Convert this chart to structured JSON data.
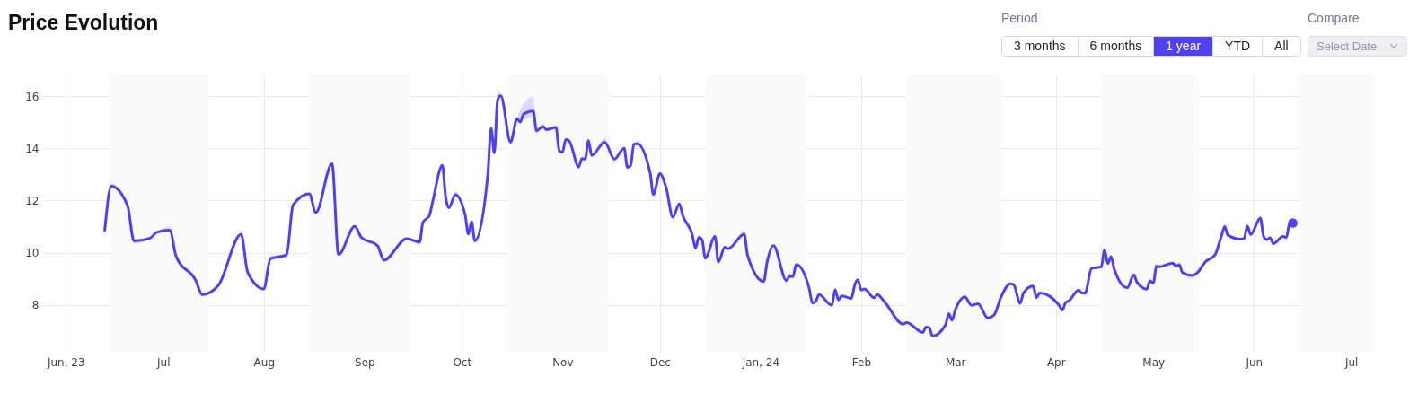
{
  "chart_data": {
    "type": "line",
    "title": "Price Evolution",
    "annotations": [
      "Period",
      "3 months",
      "6 months",
      "1 year",
      "YTD",
      "All",
      "Compare",
      "Select Date"
    ],
    "x": [
      "2023-06-13",
      "2023-06-15",
      "2023-06-20",
      "2023-06-22",
      "2023-06-27",
      "2023-06-29",
      "2023-07-03",
      "2023-07-05",
      "2023-07-11",
      "2023-07-13",
      "2023-07-18",
      "2023-07-25",
      "2023-07-27",
      "2023-08-01",
      "2023-08-03",
      "2023-08-08",
      "2023-08-10",
      "2023-08-15",
      "2023-08-17",
      "2023-08-22",
      "2023-08-24",
      "2023-08-29",
      "2023-08-31",
      "2023-09-05",
      "2023-09-07",
      "2023-09-14",
      "2023-09-18",
      "2023-09-19",
      "2023-09-21",
      "2023-09-22",
      "2023-09-25",
      "2023-09-26",
      "2023-09-27",
      "2023-09-29",
      "2023-10-02",
      "2023-10-03",
      "2023-10-04",
      "2023-10-05",
      "2023-10-09",
      "2023-10-10",
      "2023-10-11",
      "2023-10-12",
      "2023-10-13",
      "2023-10-16",
      "2023-10-18",
      "2023-10-19",
      "2023-10-20",
      "2023-10-23",
      "2023-10-24",
      "2023-10-26",
      "2023-10-27",
      "2023-10-30",
      "2023-10-31",
      "2023-11-01",
      "2023-11-02",
      "2023-11-03",
      "2023-11-06",
      "2023-11-07",
      "2023-11-08",
      "2023-11-09",
      "2023-11-10",
      "2023-11-14",
      "2023-11-17",
      "2023-11-20",
      "2023-11-21",
      "2023-11-22",
      "2023-11-23",
      "2023-11-24",
      "2023-11-28",
      "2023-11-29",
      "2023-12-01",
      "2023-12-03",
      "2023-12-05",
      "2023-12-07",
      "2023-12-08",
      "2023-12-11",
      "2023-12-12",
      "2023-12-13",
      "2023-12-14",
      "2023-12-15",
      "2023-12-18",
      "2023-12-19",
      "2023-12-21",
      "2023-12-22",
      "2023-12-27",
      "2023-12-28",
      "2024-01-02",
      "2024-01-03",
      "2024-01-05",
      "2024-01-09",
      "2024-01-10",
      "2024-01-11",
      "2024-01-12",
      "2024-01-16",
      "2024-01-17",
      "2024-01-18",
      "2024-01-19",
      "2024-01-23",
      "2024-01-24",
      "2024-01-25",
      "2024-01-26",
      "2024-01-29",
      "2024-01-30",
      "2024-01-31",
      "2024-02-01",
      "2024-02-02",
      "2024-02-05",
      "2024-02-06",
      "2024-02-08",
      "2024-02-14",
      "2024-02-15",
      "2024-02-20",
      "2024-02-21",
      "2024-02-22",
      "2024-02-23",
      "2024-02-27",
      "2024-02-28",
      "2024-02-29",
      "2024-03-01",
      "2024-03-04",
      "2024-03-06",
      "2024-03-08",
      "2024-03-11",
      "2024-03-13",
      "2024-03-15",
      "2024-03-18",
      "2024-03-19",
      "2024-03-21",
      "2024-03-22",
      "2024-03-25",
      "2024-03-26",
      "2024-03-27",
      "2024-04-02",
      "2024-04-03",
      "2024-04-04",
      "2024-04-05",
      "2024-04-08",
      "2024-04-09",
      "2024-04-10",
      "2024-04-12",
      "2024-04-15",
      "2024-04-16",
      "2024-04-17",
      "2024-04-18",
      "2024-04-19",
      "2024-04-23",
      "2024-04-25",
      "2024-04-26",
      "2024-04-29",
      "2024-04-30",
      "2024-05-01",
      "2024-05-02",
      "2024-05-03",
      "2024-05-07",
      "2024-05-08",
      "2024-05-09",
      "2024-05-10",
      "2024-05-13",
      "2024-05-15",
      "2024-05-17",
      "2024-05-20",
      "2024-05-22",
      "2024-05-23",
      "2024-05-24",
      "2024-05-28",
      "2024-05-29",
      "2024-05-30",
      "2024-05-31",
      "2024-06-03",
      "2024-06-04",
      "2024-06-05",
      "2024-06-06",
      "2024-06-07",
      "2024-06-10",
      "2024-06-11",
      "2024-06-12",
      "2024-06-13"
    ],
    "series": [
      {
        "color": "#4f40f0",
        "values": [
          10.86,
          12.55,
          11.81,
          10.45,
          10.56,
          10.78,
          10.86,
          9.85,
          8.94,
          8.39,
          8.75,
          10.71,
          9.26,
          8.61,
          9.77,
          9.91,
          11.83,
          12.26,
          11.54,
          13.41,
          9.93,
          11.01,
          10.59,
          10.27,
          9.71,
          10.54,
          10.41,
          11.16,
          11.43,
          11.95,
          13.35,
          12.14,
          11.72,
          12.22,
          11.45,
          10.71,
          11.19,
          10.45,
          13.0,
          14.78,
          13.83,
          15.85,
          16.02,
          14.24,
          15.13,
          15.01,
          15.31,
          15.43,
          14.68,
          14.84,
          14.72,
          14.8,
          13.92,
          13.85,
          14.34,
          14.3,
          13.29,
          13.61,
          13.59,
          14.3,
          13.73,
          14.24,
          13.59,
          14.0,
          13.27,
          13.35,
          14.16,
          14.18,
          13.06,
          12.23,
          13.03,
          12.46,
          11.36,
          11.87,
          11.45,
          10.68,
          10.17,
          10.59,
          10.5,
          9.79,
          10.62,
          9.64,
          10.21,
          10.15,
          10.71,
          9.91,
          8.9,
          9.61,
          10.27,
          8.93,
          9.1,
          9.08,
          9.55,
          8.63,
          8.07,
          8.13,
          8.39,
          7.98,
          8.58,
          8.19,
          8.34,
          8.25,
          8.75,
          8.96,
          8.57,
          8.61,
          8.27,
          8.39,
          8.15,
          7.26,
          7.32,
          6.94,
          7.15,
          7.12,
          6.8,
          7.23,
          7.66,
          7.41,
          7.8,
          8.3,
          7.98,
          8.04,
          7.5,
          7.62,
          8.27,
          8.81,
          8.77,
          8.06,
          8.45,
          8.72,
          8.27,
          8.45,
          7.98,
          7.8,
          8.09,
          8.15,
          8.57,
          8.45,
          8.45,
          9.4,
          9.46,
          10.11,
          9.58,
          9.85,
          9.36,
          8.66,
          9.15,
          8.86,
          8.6,
          8.92,
          8.83,
          9.49,
          9.46,
          9.6,
          9.48,
          9.54,
          9.24,
          9.13,
          9.28,
          9.64,
          9.91,
          10.64,
          11.0,
          10.67,
          10.52,
          10.55,
          11.02,
          10.7,
          11.33,
          10.62,
          10.5,
          10.57,
          10.35,
          10.62,
          10.58,
          11.12,
          11.14
        ],
        "lower": [
          10.86,
          12.5,
          11.81,
          10.35,
          10.56,
          10.78,
          10.86,
          9.85,
          8.94,
          8.32,
          8.75,
          10.71,
          9.1,
          8.61,
          9.7,
          9.8,
          11.83,
          12.26,
          11.54,
          13.41,
          9.93,
          11.01,
          10.59,
          10.2,
          9.71,
          10.54,
          10.3,
          11.16,
          11.43,
          11.95,
          13.35,
          12.14,
          11.72,
          12.22,
          11.45,
          10.71,
          11.19,
          10.45,
          13.0,
          14.78,
          13.83,
          15.85,
          16.02,
          14.24,
          15.13,
          15.01,
          15.1,
          15.19,
          14.55,
          14.84,
          14.72,
          14.8,
          13.8,
          13.85,
          14.34,
          14.3,
          13.2,
          13.61,
          13.59,
          14.3,
          13.73,
          14.24,
          13.45,
          14.0,
          13.27,
          13.35,
          14.16,
          14.18,
          13.06,
          12.23,
          13.03,
          12.46,
          11.36,
          11.87,
          11.45,
          10.68,
          10.17,
          10.59,
          10.5,
          9.79,
          10.62,
          9.64,
          10.21,
          10.15,
          10.71,
          9.91,
          8.82,
          9.61,
          10.27,
          8.93,
          9.1,
          9.08,
          9.55,
          8.63,
          8.07,
          8.13,
          8.39,
          7.98,
          8.58,
          8.19,
          8.34,
          8.25,
          8.75,
          8.96,
          8.57,
          8.61,
          8.27,
          8.39,
          8.15,
          7.26,
          7.32,
          6.94,
          7.15,
          7.12,
          6.8,
          7.23,
          7.66,
          7.41,
          7.8,
          8.3,
          7.98,
          8.04,
          7.5,
          7.62,
          8.27,
          8.81,
          8.77,
          8.06,
          8.45,
          8.72,
          8.27,
          8.45,
          7.98,
          7.8,
          8.09,
          8.15,
          8.57,
          8.45,
          8.3,
          9.4,
          9.46,
          10.11,
          9.58,
          9.85,
          9.25,
          8.66,
          9.15,
          8.86,
          8.6,
          8.92,
          8.83,
          9.49,
          9.46,
          9.6,
          9.48,
          9.54,
          9.24,
          9.0,
          9.28,
          9.64,
          9.91,
          10.64,
          11.0,
          10.67,
          10.52,
          10.55,
          11.02,
          10.7,
          11.33,
          10.62,
          10.5,
          10.57,
          10.35,
          10.62,
          10.58,
          11.12,
          11.14
        ],
        "upper": [
          10.86,
          12.65,
          11.81,
          10.45,
          10.56,
          10.78,
          10.98,
          9.85,
          8.94,
          8.39,
          8.75,
          10.71,
          9.26,
          8.61,
          9.9,
          9.91,
          11.83,
          12.26,
          11.54,
          13.41,
          9.93,
          11.01,
          10.59,
          10.27,
          9.71,
          10.54,
          10.41,
          11.16,
          11.43,
          11.95,
          13.35,
          12.14,
          11.72,
          12.35,
          11.45,
          10.71,
          11.19,
          10.45,
          13.0,
          14.78,
          13.83,
          16.26,
          16.1,
          14.24,
          15.13,
          15.49,
          15.7,
          15.99,
          14.68,
          14.98,
          14.72,
          14.8,
          13.92,
          13.85,
          14.34,
          14.3,
          13.29,
          13.61,
          13.59,
          14.3,
          13.73,
          14.38,
          13.59,
          14.0,
          13.27,
          13.35,
          14.16,
          14.3,
          13.06,
          12.23,
          13.03,
          12.46,
          11.36,
          11.87,
          11.45,
          10.68,
          10.17,
          10.59,
          10.5,
          9.79,
          10.62,
          9.64,
          10.21,
          10.15,
          10.85,
          9.91,
          8.9,
          9.61,
          10.27,
          8.93,
          9.25,
          9.08,
          9.55,
          8.63,
          8.07,
          8.13,
          8.39,
          7.98,
          8.58,
          8.19,
          8.34,
          8.25,
          8.75,
          8.96,
          8.57,
          8.61,
          8.27,
          8.39,
          8.15,
          7.26,
          7.32,
          6.94,
          7.15,
          7.12,
          6.8,
          7.23,
          7.66,
          7.41,
          7.8,
          8.4,
          7.98,
          8.04,
          7.5,
          7.62,
          8.27,
          8.81,
          8.77,
          8.06,
          8.45,
          8.72,
          8.27,
          8.45,
          7.98,
          7.8,
          8.09,
          8.15,
          8.57,
          8.45,
          8.45,
          9.4,
          9.46,
          10.11,
          9.58,
          9.85,
          9.36,
          8.66,
          9.15,
          8.86,
          8.6,
          8.92,
          8.83,
          9.49,
          9.46,
          9.6,
          9.48,
          9.54,
          9.24,
          9.13,
          9.45,
          9.64,
          9.91,
          10.64,
          11.0,
          10.67,
          10.52,
          10.55,
          11.02,
          10.7,
          11.33,
          10.62,
          10.5,
          10.57,
          10.35,
          10.62,
          10.58,
          11.12,
          11.14
        ]
      },
      {
        "type": "scatter",
        "color": "#5343f2",
        "x": [
          "2024-06-13"
        ],
        "values": [
          11.14
        ]
      }
    ],
    "xlim": [
      "2023-05-25",
      "2024-07-08"
    ],
    "ylim": [
      6.2,
      16.8
    ],
    "xticks": [
      {
        "value": "2023-06-01",
        "label": "Jun, 23"
      },
      {
        "value": "2023-07-01",
        "label": "Jul"
      },
      {
        "value": "2023-08-01",
        "label": "Aug"
      },
      {
        "value": "2023-09-01",
        "label": "Sep"
      },
      {
        "value": "2023-10-01",
        "label": "Oct"
      },
      {
        "value": "2023-11-01",
        "label": "Nov"
      },
      {
        "value": "2023-12-01",
        "label": "Dec"
      },
      {
        "value": "2024-01-01",
        "label": "Jan, 24"
      },
      {
        "value": "2024-02-01",
        "label": "Feb"
      },
      {
        "value": "2024-03-01",
        "label": "Mar"
      },
      {
        "value": "2024-04-01",
        "label": "Apr"
      },
      {
        "value": "2024-05-01",
        "label": "May"
      },
      {
        "value": "2024-06-01",
        "label": "Jun"
      },
      {
        "value": "2024-07-01",
        "label": "Jul"
      }
    ],
    "yticks": [
      8,
      10,
      12,
      14,
      16
    ],
    "grid": true,
    "bands": [
      {
        "axis": "x",
        "from": "2023-06-15",
        "to": "2023-07-15",
        "color": "#fafafa"
      },
      {
        "axis": "x",
        "from": "2023-08-15",
        "to": "2023-09-15",
        "color": "#fafafa"
      },
      {
        "axis": "x",
        "from": "2023-10-15",
        "to": "2023-11-15",
        "color": "#fafafa"
      },
      {
        "axis": "x",
        "from": "2023-12-15",
        "to": "2024-01-15",
        "color": "#fafafa"
      },
      {
        "axis": "x",
        "from": "2024-02-15",
        "to": "2024-03-15",
        "color": "#fafafa"
      },
      {
        "axis": "x",
        "from": "2024-04-15",
        "to": "2024-05-15",
        "color": "#fafafa"
      },
      {
        "axis": "x",
        "from": "2024-06-15",
        "to": "2024-07-08",
        "color": "#fafafa"
      }
    ]
  }
}
